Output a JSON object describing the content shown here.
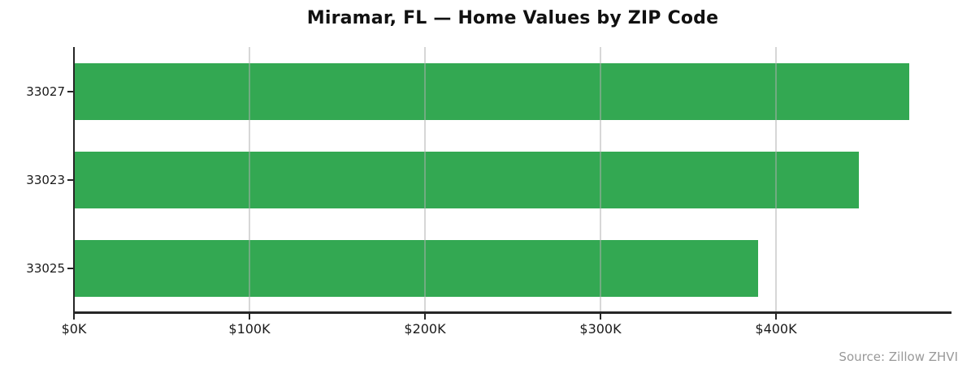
{
  "title": "Miramar, FL — Home Values by ZIP Code",
  "source_note": "Source: Zillow ZHVI",
  "colors": {
    "bar": "#33a852",
    "axis": "#262626",
    "gridline": "rgba(176,176,176,0.5)",
    "tick_label": "#1a1a1a",
    "title": "#111111",
    "source": "#999999",
    "background": "#ffffff"
  },
  "chart_data": {
    "type": "bar",
    "orientation": "horizontal",
    "title": "Miramar, FL — Home Values by ZIP Code",
    "categories": [
      "33027",
      "33023",
      "33025"
    ],
    "values": [
      476000,
      447000,
      390000
    ],
    "xlabel": "",
    "ylabel": "",
    "xlim": [
      0,
      500000
    ],
    "x_ticks": [
      0,
      100000,
      200000,
      300000,
      400000
    ],
    "x_tick_labels": [
      "$0K",
      "$100K",
      "$200K",
      "$300K",
      "$400K"
    ],
    "grid": "vertical-over-bars",
    "legend": false
  }
}
